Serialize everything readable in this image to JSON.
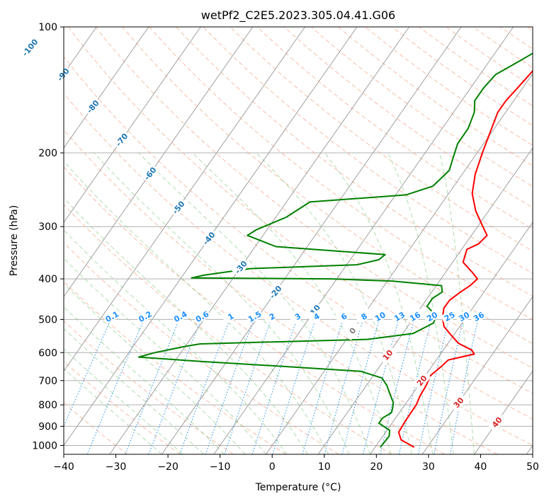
{
  "chart_data": {
    "type": "line",
    "title": "wetPf2_C2E5.2023.305.04.41.G06",
    "xlabel": "Temperature (°C)",
    "ylabel": "Pressure (hPa)",
    "xlim": [
      -40,
      50
    ],
    "ylim": [
      1050,
      100
    ],
    "y_scale": "log",
    "grid": true,
    "x_ticks": [
      "−40",
      "−30",
      "−20",
      "−10",
      "0",
      "10",
      "20",
      "30",
      "40",
      "50"
    ],
    "y_ticks": [
      "100",
      "200",
      "300",
      "400",
      "500",
      "600",
      "700",
      "800",
      "900",
      "1000"
    ],
    "series": [
      {
        "color": "#ff0000",
        "points": [
          [
            27.5,
            1010
          ],
          [
            24,
            970
          ],
          [
            22.5,
            930
          ],
          [
            22.3,
            880
          ],
          [
            22.2,
            800
          ],
          [
            21.7,
            760
          ],
          [
            21.5,
            720
          ],
          [
            21,
            680
          ],
          [
            21.8,
            650
          ],
          [
            22.3,
            625
          ],
          [
            26.5,
            605
          ],
          [
            25.5,
            592
          ],
          [
            22,
            570
          ],
          [
            19.5,
            545
          ],
          [
            17,
            520
          ],
          [
            15.5,
            495
          ],
          [
            14.5,
            470
          ],
          [
            14.5,
            450
          ],
          [
            15.5,
            430
          ],
          [
            16.5,
            415
          ],
          [
            17,
            400
          ],
          [
            15,
            385
          ],
          [
            12,
            365
          ],
          [
            11,
            340
          ],
          [
            12.5,
            330
          ],
          [
            13,
            315
          ],
          [
            11,
            300
          ],
          [
            7.5,
            275
          ],
          [
            4.5,
            250
          ],
          [
            2.5,
            225
          ],
          [
            1,
            200
          ],
          [
            -0.5,
            175
          ],
          [
            -1.5,
            160
          ],
          [
            -1.5,
            150
          ],
          [
            -1,
            140
          ],
          [
            -0.5,
            130
          ],
          [
            0,
            120
          ],
          [
            1,
            110
          ],
          [
            4,
            103
          ],
          [
            6.5,
            100
          ]
        ]
      },
      {
        "color": "#008000",
        "points": [
          [
            21,
            1010
          ],
          [
            21.2,
            950
          ],
          [
            20.5,
            920
          ],
          [
            17.5,
            885
          ],
          [
            17.5,
            860
          ],
          [
            18.5,
            835
          ],
          [
            18,
            810
          ],
          [
            17.5,
            790
          ],
          [
            16.5,
            770
          ],
          [
            15,
            740
          ],
          [
            14,
            720
          ],
          [
            12,
            690
          ],
          [
            7,
            665
          ],
          [
            -8,
            648
          ],
          [
            -25,
            630
          ],
          [
            -37.5,
            615
          ],
          [
            -35,
            600
          ],
          [
            -30,
            580
          ],
          [
            -27.5,
            572
          ],
          [
            4,
            558
          ],
          [
            12,
            540
          ],
          [
            14.5,
            510
          ],
          [
            14,
            490
          ],
          [
            11,
            465
          ],
          [
            11,
            445
          ],
          [
            12,
            430
          ],
          [
            11,
            415
          ],
          [
            1,
            405
          ],
          [
            -11,
            400
          ],
          [
            -38,
            398
          ],
          [
            -36,
            392
          ],
          [
            -28,
            378
          ],
          [
            -8,
            370
          ],
          [
            -4.5,
            360
          ],
          [
            -4,
            350
          ],
          [
            -26,
            335
          ],
          [
            -33,
            315
          ],
          [
            -32,
            305
          ],
          [
            -28,
            285
          ],
          [
            -25.5,
            262
          ],
          [
            -8,
            252
          ],
          [
            -4,
            240
          ],
          [
            -3,
            220
          ],
          [
            -4,
            205
          ],
          [
            -5,
            190
          ],
          [
            -5,
            175
          ],
          [
            -6,
            160
          ],
          [
            -7.5,
            150
          ],
          [
            -7.5,
            140
          ],
          [
            -7,
            130
          ],
          [
            -4,
            120
          ],
          [
            -1,
            110
          ],
          [
            1,
            102
          ],
          [
            1.5,
            100
          ]
        ]
      }
    ],
    "isotherm_labels": [
      "-100",
      "-90",
      "-80",
      "-70",
      "-60",
      "-50",
      "-40",
      "-30",
      "-20",
      "-10",
      "0",
      "10",
      "20",
      "30",
      "40"
    ],
    "mixing_ratio_labels": [
      "0.1",
      "0.2",
      "0.4",
      "0.6",
      "1",
      "1.5",
      "2",
      "3",
      "4",
      "6",
      "8",
      "10",
      "13",
      "16",
      "20",
      "25",
      "30",
      "36"
    ],
    "colors": {
      "temperature": "#ff0000",
      "dewpoint": "#008000",
      "isotherm": "#a0a0a0",
      "isotherm_label_cold": "#1f77b4",
      "isotherm_label_zero": "#808080",
      "isotherm_label_warm": "#d62728",
      "dry_adiabat": "#f6a58a",
      "moist_adiabat": "#8fcf8f",
      "mixing_ratio": "#1f8fef",
      "mixing_ratio_label": "#1e90ff",
      "grid": "#b0b0b0"
    }
  }
}
